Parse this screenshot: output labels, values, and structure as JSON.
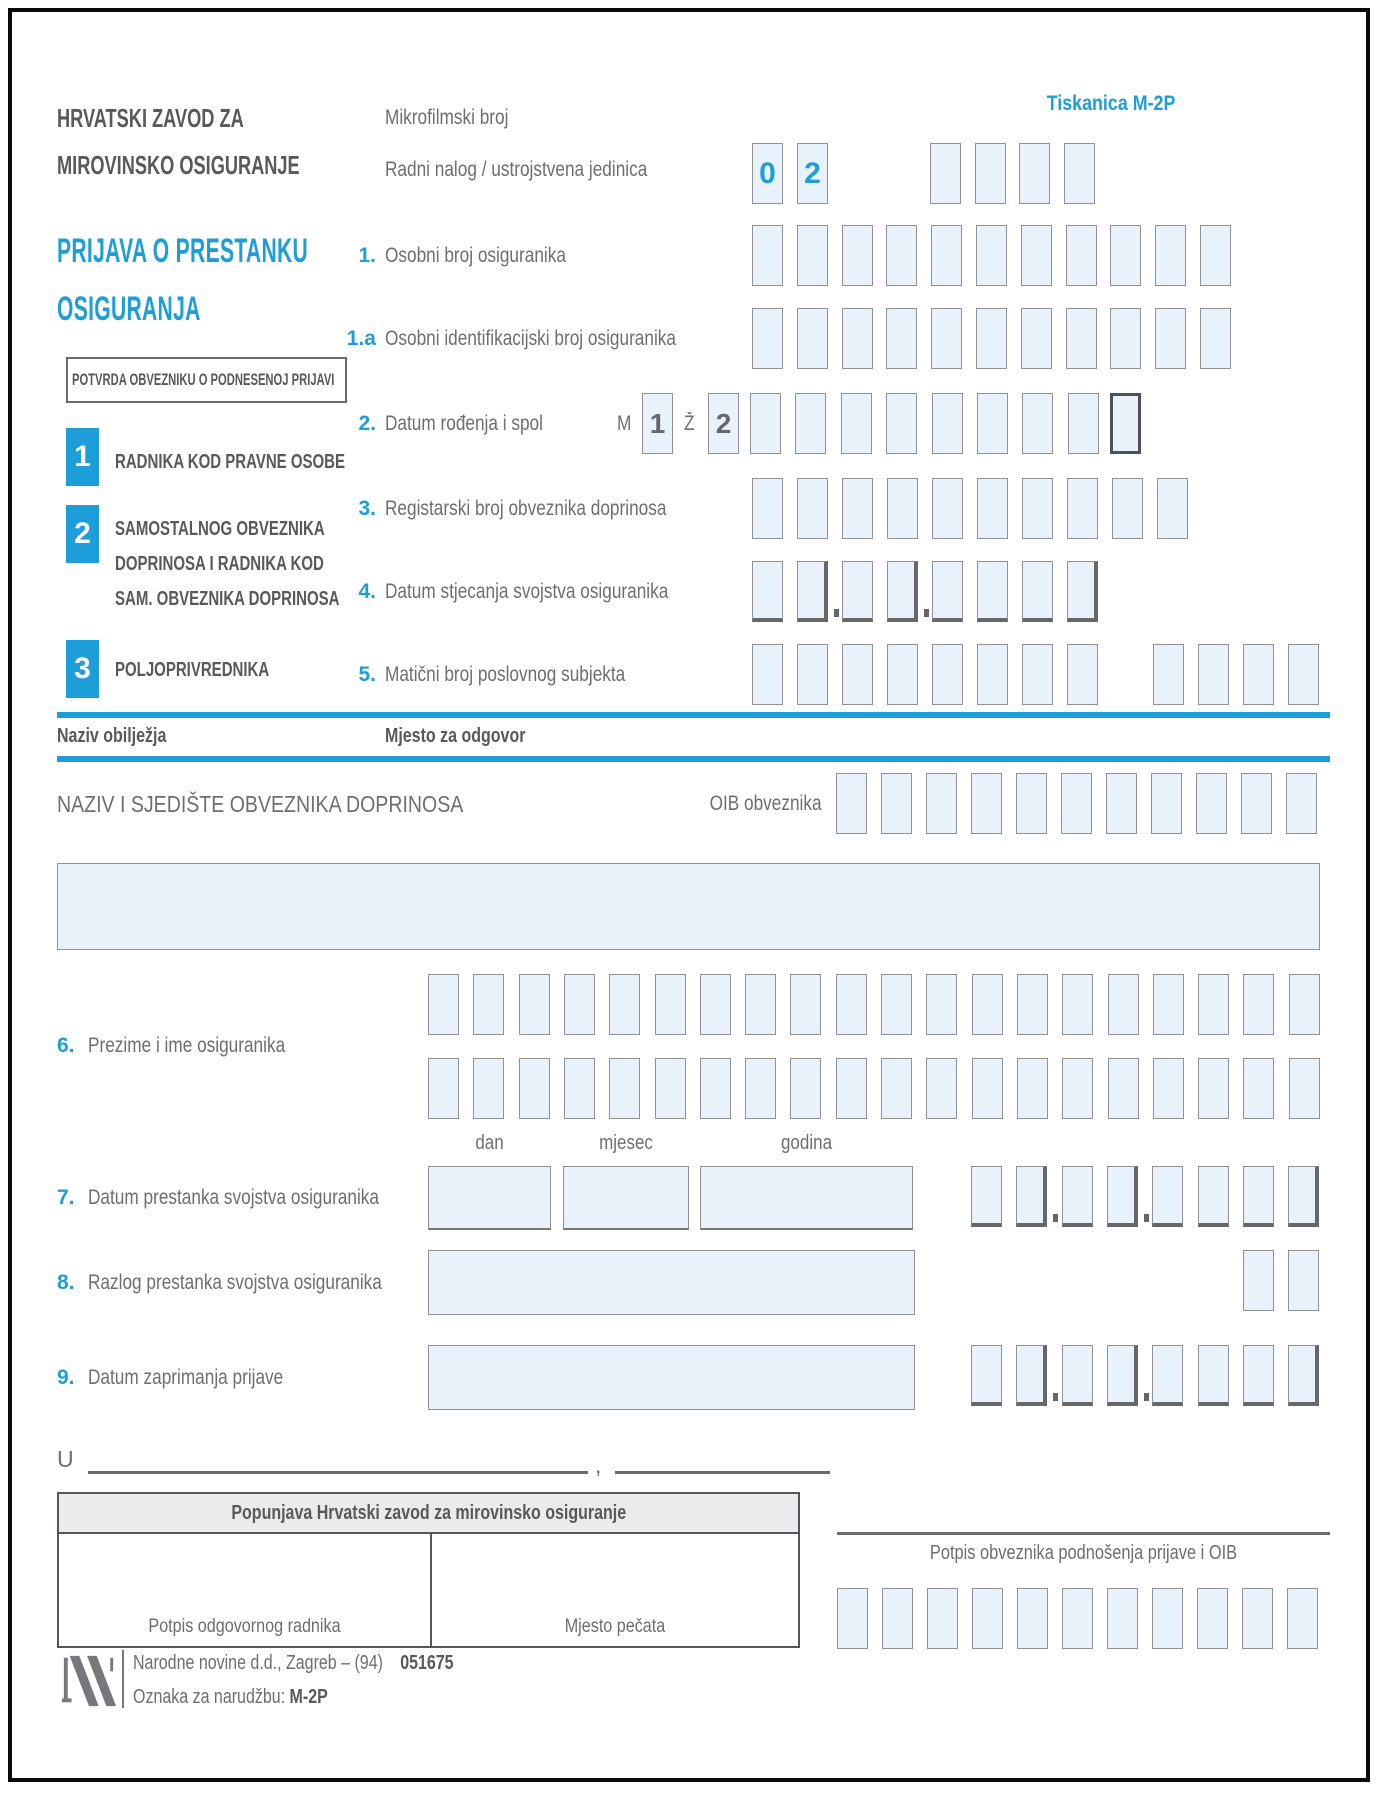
{
  "header": {
    "org_line1": "HRVATSKI ZAVOD ZA",
    "org_line2": "MIROVINSKO OSIGURANJE",
    "mikrofilmski_label": "Mikrofilmski broj",
    "radni_nalog_label": "Radni nalog / ustrojstvena jedinica",
    "radni_nalog_values": [
      "0",
      "2"
    ],
    "tiskanica": "Tiskanica M-2P"
  },
  "title": {
    "line1": "PRIJAVA O PRESTANKU",
    "line2": "OSIGURANJA"
  },
  "potvrda": "POTVRDA OBVEZNIKU O PODNESENOJ PRIJAVI",
  "categories": [
    {
      "num": "1",
      "lines": [
        "RADNIKA KOD PRAVNE OSOBE"
      ]
    },
    {
      "num": "2",
      "lines": [
        "SAMOSTALNOG OBVEZNIKA",
        "DOPRINOSA I RADNIKA KOD",
        "SAM. OBVEZNIKA DOPRINOSA"
      ]
    },
    {
      "num": "3",
      "lines": [
        "POLJOPRIVREDNIKA"
      ]
    }
  ],
  "fields": {
    "f1": {
      "num": "1.",
      "label": "Osobni broj osiguranika"
    },
    "f1a": {
      "num": "1.a",
      "label": "Osobni identifikacijski broj osiguranika"
    },
    "f2": {
      "num": "2.",
      "label": "Datum rođenja i spol",
      "m_label": "M",
      "m_val": "1",
      "z_label": "Ž",
      "z_val": "2"
    },
    "f3": {
      "num": "3.",
      "label": "Registarski broj obveznika doprinosa"
    },
    "f4": {
      "num": "4.",
      "label": "Datum stjecanja svojstva osiguranika"
    },
    "f5": {
      "num": "5.",
      "label": "Matični broj poslovnog subjekta"
    },
    "f6": {
      "num": "6.",
      "label": "Prezime i ime osiguranika"
    },
    "f7": {
      "num": "7.",
      "label": "Datum prestanka svojstva osiguranika"
    },
    "f8": {
      "num": "8.",
      "label": "Razlog prestanka svojstva osiguranika"
    },
    "f9": {
      "num": "9.",
      "label": "Datum zaprimanja prijave"
    }
  },
  "section": {
    "naziv_obiljezja": "Naziv obilježja",
    "mjesto_za_odgovor": "Mjesto za odgovor",
    "naziv_sjediste": "NAZIV I SJEDIŠTE OBVEZNIKA DOPRINOSA",
    "oib_label": "OIB obveznika"
  },
  "date_labels": {
    "dan": "dan",
    "mjesec": "mjesec",
    "godina": "godina"
  },
  "place_line": {
    "u_label": "U",
    "comma": ","
  },
  "hzmo_table": {
    "header": "Popunjava Hrvatski zavod za mirovinsko osiguranje",
    "potpis_radnika": "Potpis odgovornog radnika",
    "mjesto_pecata": "Mjesto pečata"
  },
  "signature": {
    "label": "Potpis obveznika podnošenja prijave i OIB"
  },
  "footer": {
    "publisher": "Narodne novine d.d., Zagreb – (94)",
    "code": "051675",
    "order_label": "Oznaka za narudžbu:",
    "order_code": "M-2P"
  },
  "colors": {
    "blue": "#1d9ed9",
    "box_fill": "#e9f1fa",
    "box_border": "#8f9396",
    "shadow_gray": "#66676a",
    "text_gray": "#6d6e70",
    "dark_gray": "#58595b"
  }
}
